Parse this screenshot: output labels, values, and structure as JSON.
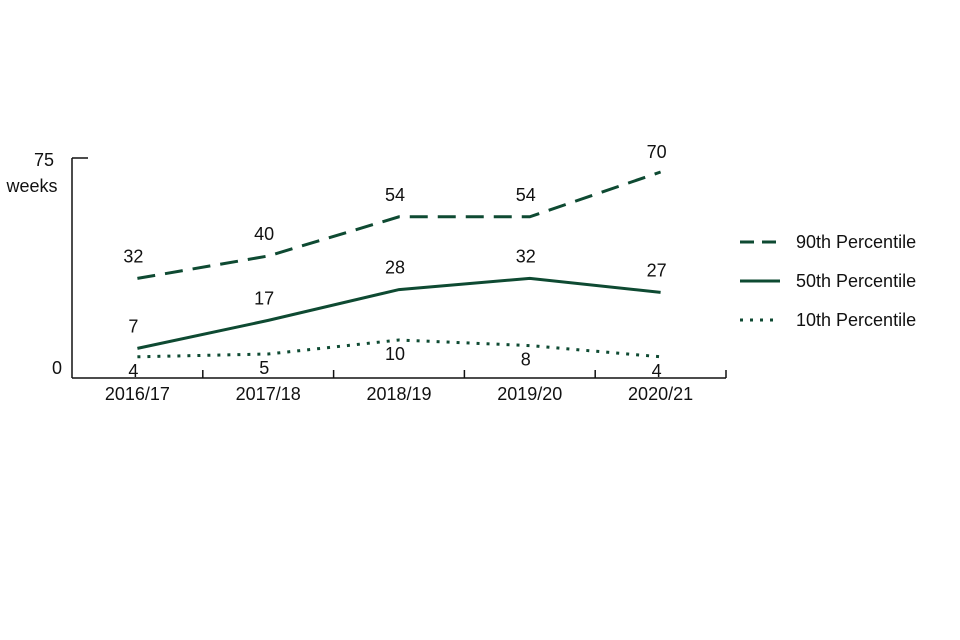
{
  "chart_data": {
    "type": "line",
    "categories": [
      "2016/17",
      "2017/18",
      "2018/19",
      "2019/20",
      "2020/21"
    ],
    "series": [
      {
        "name": "90th Percentile",
        "values": [
          32,
          40,
          54,
          54,
          70
        ],
        "style": "dashed"
      },
      {
        "name": "50th Percentile",
        "values": [
          7,
          17,
          28,
          32,
          27
        ],
        "style": "solid"
      },
      {
        "name": "10th Percentile",
        "values": [
          4,
          5,
          10,
          8,
          4
        ],
        "style": "dotted"
      }
    ],
    "ylim": [
      0,
      75
    ],
    "y_ticks": [
      "0",
      "75"
    ],
    "ylabel": "weeks",
    "xlabel": "",
    "legend": "right",
    "grid": false,
    "colors": {
      "line": "#0e4a32",
      "axis": "#111111",
      "text": "#111111"
    }
  }
}
